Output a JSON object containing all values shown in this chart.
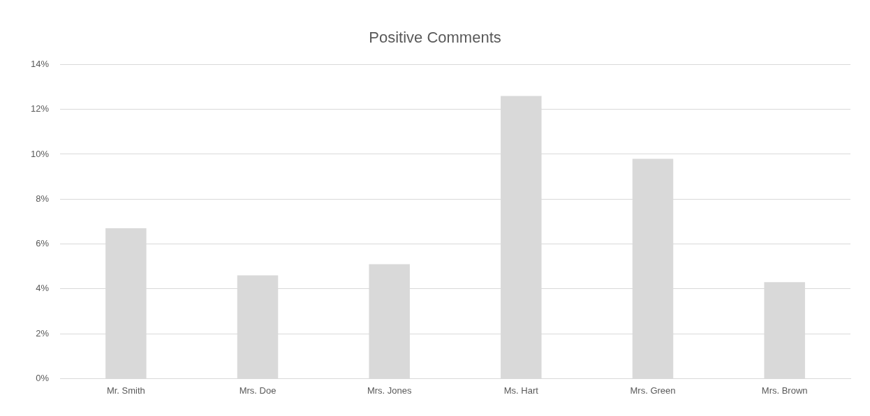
{
  "chart_data": {
    "type": "bar",
    "title": "Positive Comments",
    "categories": [
      "Mr. Smith",
      "Mrs. Doe",
      "Mrs. Jones",
      "Ms. Hart",
      "Mrs. Green",
      "Mrs. Brown"
    ],
    "values": [
      6.7,
      4.6,
      5.1,
      12.6,
      9.8,
      4.3
    ],
    "color": "#d9d9d9",
    "ylim": [
      0,
      14
    ],
    "yticks": [
      {
        "value": 0,
        "label": "0%"
      },
      {
        "value": 2,
        "label": "2%"
      },
      {
        "value": 4,
        "label": "4%"
      },
      {
        "value": 6,
        "label": "6%"
      },
      {
        "value": 8,
        "label": "8%"
      },
      {
        "value": 10,
        "label": "10%"
      },
      {
        "value": 12,
        "label": "12%"
      },
      {
        "value": 14,
        "label": "14%"
      }
    ],
    "grid": "y",
    "legend": false
  }
}
